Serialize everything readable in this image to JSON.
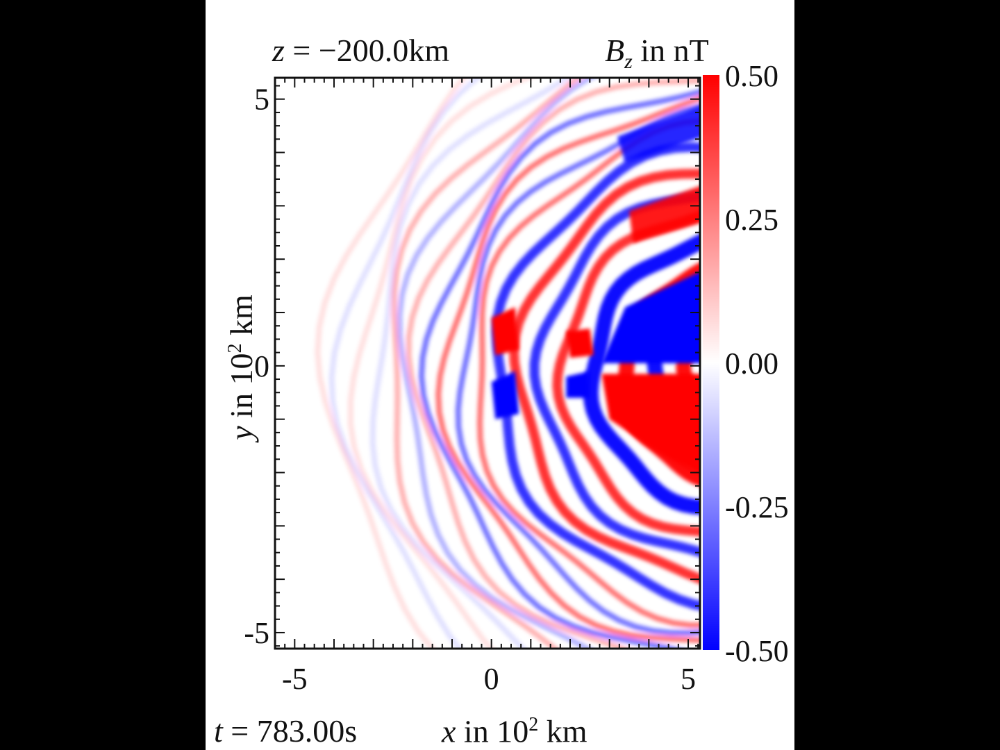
{
  "chart_data": {
    "type": "heatmap",
    "title_left": {
      "var": "z",
      "eq": " = ",
      "value": "−200.0",
      "unit": "km"
    },
    "title_right": {
      "var": "B",
      "sub": "z",
      "text": " in nT"
    },
    "time_label": {
      "var": "t",
      "eq": " = ",
      "value": "783.00",
      "unit": "s"
    },
    "xlabel": {
      "var": "x",
      "text": " in 10",
      "sup": "2",
      "unit": " km"
    },
    "ylabel": {
      "var": "y",
      "text": " in 10",
      "sup": "2",
      "unit": " km"
    },
    "xlim": [
      -5.5,
      5.3
    ],
    "ylim": [
      -5.3,
      5.4
    ],
    "x_ticks": [
      {
        "value": -5,
        "label": "-5"
      },
      {
        "value": 0,
        "label": "0"
      },
      {
        "value": 5,
        "label": "5"
      }
    ],
    "y_ticks": [
      {
        "value": 5,
        "label": "5"
      },
      {
        "value": 0,
        "label": "0"
      },
      {
        "value": -5,
        "label": "-5"
      }
    ],
    "colorbar": {
      "range": [
        -0.5,
        0.5
      ],
      "ticks": [
        {
          "value": 0.5,
          "label": "0.50"
        },
        {
          "value": 0.25,
          "label": "0.25"
        },
        {
          "value": 0.0,
          "label": "0.00"
        },
        {
          "value": -0.25,
          "label": "-0.25"
        },
        {
          "value": -0.5,
          "label": "-0.50"
        }
      ],
      "colors": {
        "max": "#ff0000",
        "mid": "#ffffff",
        "min": "#0000ff"
      }
    }
  }
}
